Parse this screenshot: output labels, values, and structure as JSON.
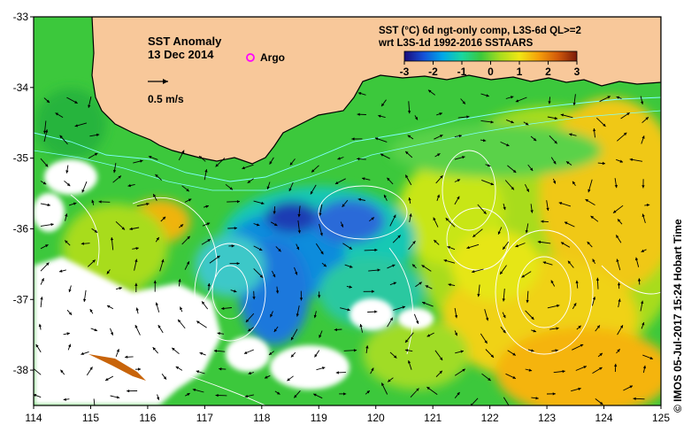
{
  "title": {
    "line1": "SST Anomaly",
    "line2": "13 Dec 2014"
  },
  "legend": {
    "argo_label": "Argo",
    "argo_color": "#ff00ff",
    "velocity_label": "0.5 m/s"
  },
  "colorbar": {
    "title_line1": "SST (°C) 6d ngt-only comp, L3S-6d QL>=2",
    "title_line2": "wrt L3S-1d 1992-2016 SSTAARS",
    "ticks": [
      "-3",
      "-2",
      "-1",
      "0",
      "1",
      "2",
      "3"
    ],
    "range": [
      -3,
      3
    ],
    "colors": [
      "#1a0a78",
      "#1550d8",
      "#00a8e8",
      "#19d6a0",
      "#3cc83c",
      "#a8dc1e",
      "#f0e614",
      "#f5a00a",
      "#d25a0a",
      "#7a1a0a"
    ]
  },
  "axes": {
    "lon_ticks": [
      "114",
      "115",
      "116",
      "117",
      "118",
      "119",
      "120",
      "121",
      "122",
      "123",
      "124",
      "125"
    ],
    "lat_ticks": [
      "-33",
      "-34",
      "-35",
      "-36",
      "-37",
      "-38"
    ],
    "lon_range": [
      114,
      125
    ],
    "lat_range": [
      -38.5,
      -33
    ]
  },
  "map_colors": {
    "land": "#f8c89a",
    "no_data": "#ffffff",
    "coast": "#000000",
    "contour": "#ffffff",
    "shelf": "#80ffff"
  },
  "credit": "© IMOS 05-Jul-2017 15:24 Hobart Time"
}
